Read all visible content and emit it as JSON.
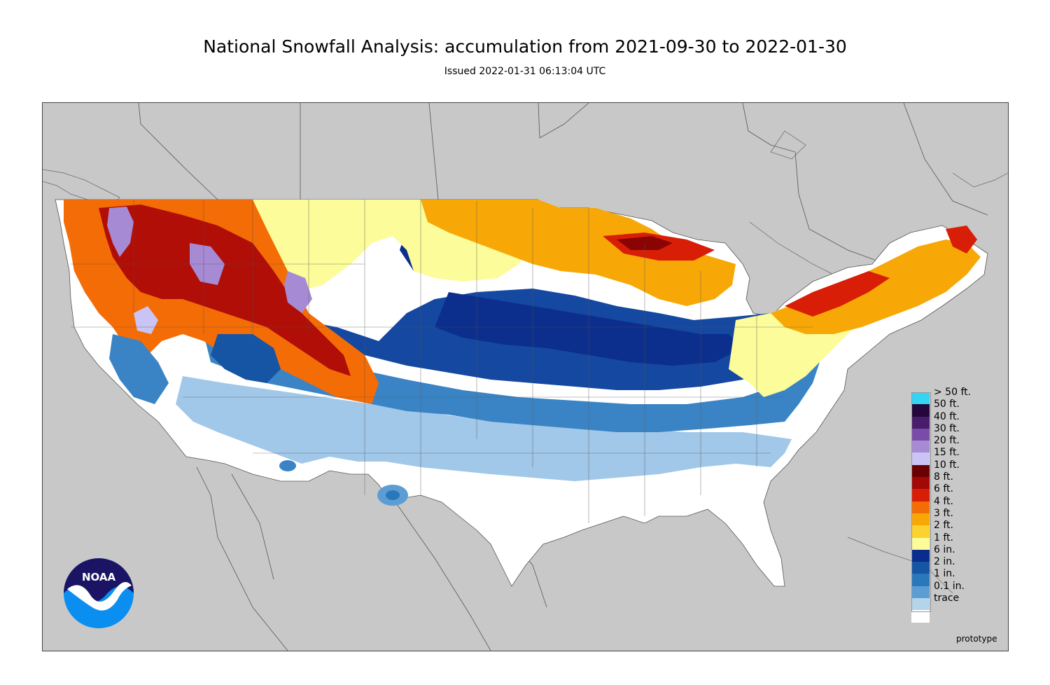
{
  "title": "National Snowfall Analysis: accumulation from 2021-09-30 to 2022-01-30",
  "subtitle": "Issued 2022-01-31 06:13:04 UTC",
  "footer_note": "prototype",
  "logo": {
    "icon": "noaa-logo",
    "text": "NOAA",
    "colors": {
      "dark": "#1b1464",
      "light": "#0a8ef0"
    }
  },
  "colors": {
    "land_background": "#c8c8c8",
    "border_lines": "#444444"
  },
  "legend": [
    {
      "label": "> 50 ft.",
      "color": "#34d4f4"
    },
    {
      "label": "50 ft.",
      "color": "#24083c"
    },
    {
      "label": "40 ft.",
      "color": "#4a1c6c"
    },
    {
      "label": "30 ft.",
      "color": "#7a4ca8"
    },
    {
      "label": "20 ft.",
      "color": "#a68ad4"
    },
    {
      "label": "15 ft.",
      "color": "#cac4f4"
    },
    {
      "label": "10 ft.",
      "color": "#6a0000"
    },
    {
      "label": "8 ft.",
      "color": "#a20808"
    },
    {
      "label": "6 ft.",
      "color": "#d81e06"
    },
    {
      "label": "4 ft.",
      "color": "#f46c06"
    },
    {
      "label": "3 ft.",
      "color": "#f8a806"
    },
    {
      "label": "2 ft.",
      "color": "#fcd22e"
    },
    {
      "label": "1 ft.",
      "color": "#fcfc9a"
    },
    {
      "label": "6 in.",
      "color": "#0a2c8e"
    },
    {
      "label": "2 in.",
      "color": "#1654a4"
    },
    {
      "label": "1 in.",
      "color": "#2a78bc"
    },
    {
      "label": "0.1 in.",
      "color": "#5c9ed4"
    },
    {
      "label": "trace",
      "color": "#b4d4ec"
    },
    {
      "label": "",
      "color": "#ffffff"
    }
  ]
}
